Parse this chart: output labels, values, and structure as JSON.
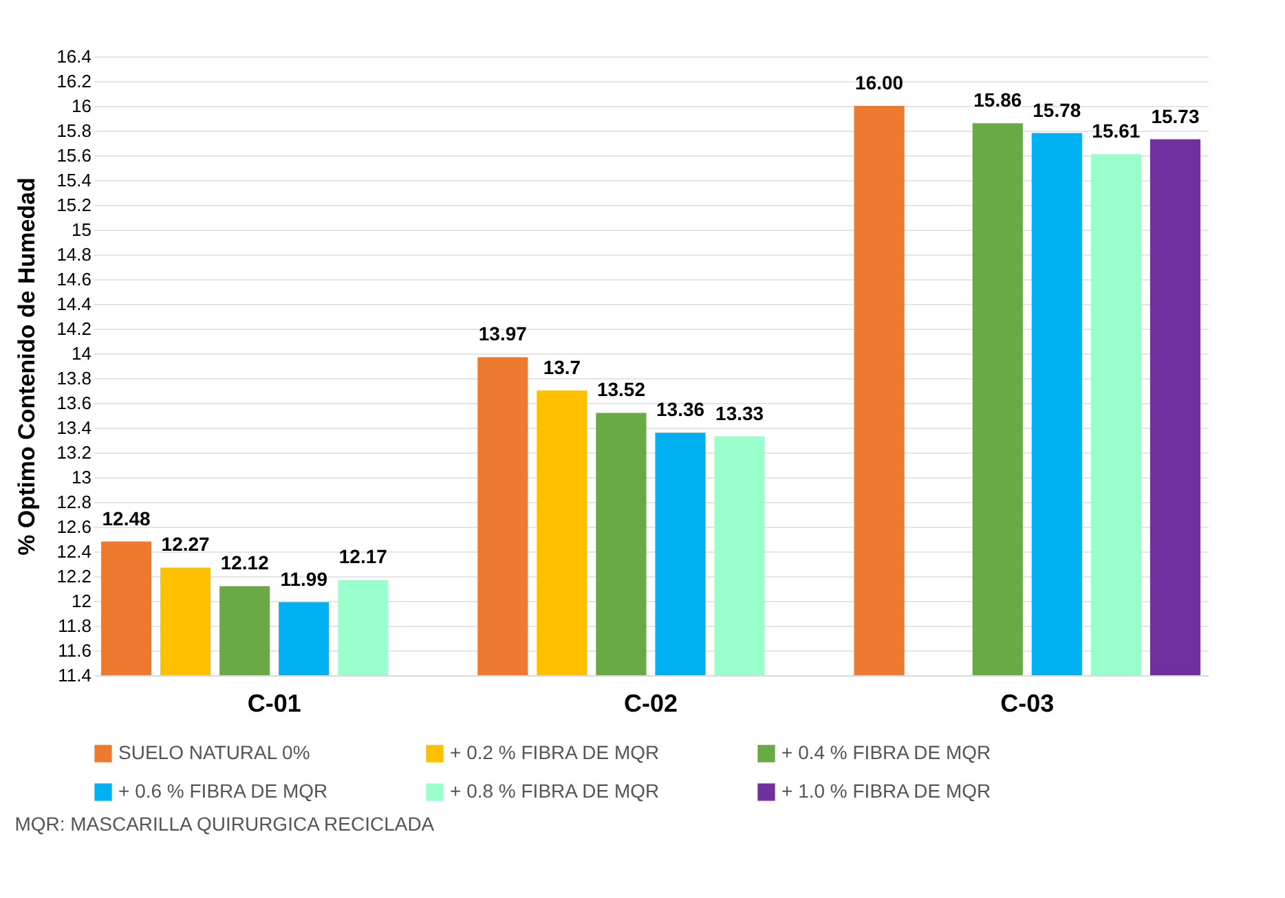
{
  "chart_data": {
    "type": "bar",
    "ylabel": "% Optimo Contenido de Humedad",
    "categories": [
      "C-01",
      "C-02",
      "C-03"
    ],
    "series": [
      {
        "name": "SUELO NATURAL 0%",
        "color": "#ee7a30",
        "values": [
          12.48,
          13.97,
          16.0
        ],
        "value_labels": [
          "12.48",
          "13.97",
          "16.00"
        ]
      },
      {
        "name": "+ 0.2 % FIBRA DE MQR",
        "color": "#ffc000",
        "values": [
          12.27,
          13.7,
          null
        ],
        "value_labels": [
          "12.27",
          "13.7",
          null
        ]
      },
      {
        "name": "+ 0.4 % FIBRA DE MQR",
        "color": "#6aaa44",
        "values": [
          12.12,
          13.52,
          15.86
        ],
        "value_labels": [
          "12.12",
          "13.52",
          "15.86"
        ]
      },
      {
        "name": "+ 0.6 % FIBRA DE MQR",
        "color": "#00b0f0",
        "values": [
          11.99,
          13.36,
          15.78
        ],
        "value_labels": [
          "11.99",
          "13.36",
          "15.78"
        ]
      },
      {
        "name": "+ 0.8 % FIBRA DE MQR",
        "color": "#99ffcc",
        "values": [
          12.17,
          13.33,
          15.61
        ],
        "value_labels": [
          "12.17",
          "13.33",
          "15.61"
        ]
      },
      {
        "name": "+ 1.0 % FIBRA DE MQR",
        "color": "#7030a0",
        "values": [
          null,
          null,
          15.73
        ],
        "value_labels": [
          null,
          null,
          "15.73"
        ]
      }
    ],
    "ylim": [
      11.4,
      16.4
    ],
    "yticks": [
      11.4,
      11.6,
      11.8,
      12,
      12.2,
      12.4,
      12.6,
      12.8,
      13,
      13.2,
      13.4,
      13.6,
      13.8,
      14,
      14.2,
      14.4,
      14.6,
      14.8,
      15,
      15.2,
      15.4,
      15.6,
      15.8,
      16,
      16.2,
      16.4
    ],
    "grid": "y",
    "legend": "bottom",
    "annotations": [
      "MQR: MASCARILLA QUIRURGICA RECICLADA"
    ]
  }
}
